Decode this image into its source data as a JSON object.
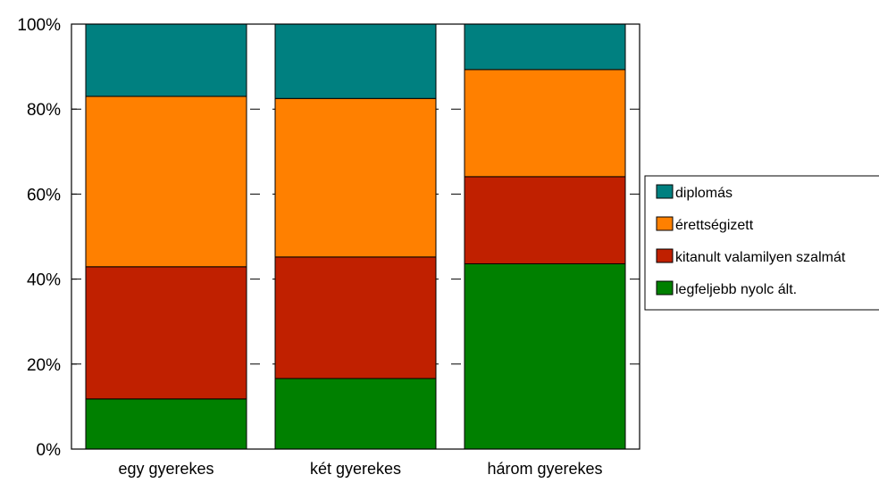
{
  "chart_data": {
    "type": "bar",
    "stacked": true,
    "normalized": true,
    "categories": [
      "egy gyerekes",
      "két gyerekes",
      "három gyerekes"
    ],
    "series": [
      {
        "name": "legfeljebb nyolc ált.",
        "color": "#008000",
        "values": [
          11.8,
          16.6,
          43.6
        ]
      },
      {
        "name": "kitanult valamilyen szalmát",
        "color": "#C02000",
        "values": [
          31.1,
          28.6,
          20.5
        ]
      },
      {
        "name": "érettségizett",
        "color": "#FF8000",
        "values": [
          40.1,
          37.3,
          25.2
        ]
      },
      {
        "name": "diplomás",
        "color": "#008080",
        "values": [
          17.0,
          17.5,
          10.7
        ]
      }
    ],
    "ylim": [
      0,
      100
    ],
    "y_ticks": [
      "0%",
      "20%",
      "40%",
      "60%",
      "80%",
      "100%"
    ],
    "grid": "dashed horizontal",
    "legend_position": "right",
    "legend_order": [
      "diplomás",
      "érettségizett",
      "kitanult valamilyen szalmát",
      "legfeljebb nyolc ált."
    ]
  }
}
